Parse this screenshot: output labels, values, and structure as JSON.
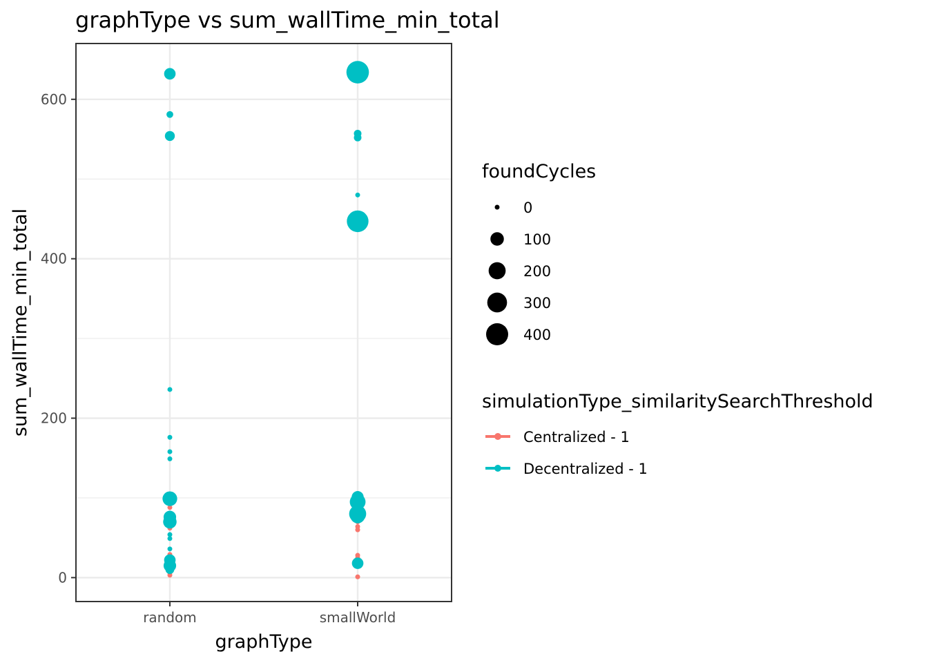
{
  "chart_data": {
    "type": "scatter",
    "title": "graphType  vs  sum_wallTime_min_total",
    "xlabel": "graphType",
    "ylabel": "sum_wallTime_min_total",
    "categories": [
      "random",
      "smallWorld"
    ],
    "ylim": [
      -30,
      670
    ],
    "yticks": [
      0,
      200,
      400,
      600
    ],
    "grid": true,
    "size_legend": {
      "title": "foundCycles",
      "breaks": [
        0,
        100,
        200,
        300,
        400
      ]
    },
    "color_legend": {
      "title": "simulationType_similaritySearchThreshold",
      "placement": "right"
    },
    "series": [
      {
        "name": "Centralized - 1",
        "color": "#F8766D",
        "points": [
          {
            "x": "random",
            "y": 88,
            "size": 0
          },
          {
            "x": "random",
            "y": 80,
            "size": 0
          },
          {
            "x": "random",
            "y": 72,
            "size": 0
          },
          {
            "x": "random",
            "y": 66,
            "size": 0
          },
          {
            "x": "random",
            "y": 62,
            "size": 0
          },
          {
            "x": "random",
            "y": 29,
            "size": 0
          },
          {
            "x": "random",
            "y": 25,
            "size": 0
          },
          {
            "x": "random",
            "y": 6,
            "size": 0
          },
          {
            "x": "random",
            "y": 3,
            "size": 0
          },
          {
            "x": "smallWorld",
            "y": 75,
            "size": 0
          },
          {
            "x": "smallWorld",
            "y": 70,
            "size": 0
          },
          {
            "x": "smallWorld",
            "y": 64,
            "size": 0
          },
          {
            "x": "smallWorld",
            "y": 60,
            "size": 0
          },
          {
            "x": "smallWorld",
            "y": 28,
            "size": 0
          },
          {
            "x": "smallWorld",
            "y": 25,
            "size": 0
          },
          {
            "x": "smallWorld",
            "y": 1,
            "size": 0
          }
        ]
      },
      {
        "name": "Decentralized - 1",
        "color": "#00BFC4",
        "points": [
          {
            "x": "random",
            "y": 632,
            "size": 60
          },
          {
            "x": "random",
            "y": 581,
            "size": 5
          },
          {
            "x": "random",
            "y": 554,
            "size": 35
          },
          {
            "x": "random",
            "y": 236,
            "size": 0
          },
          {
            "x": "random",
            "y": 176,
            "size": 0
          },
          {
            "x": "random",
            "y": 158,
            "size": 0
          },
          {
            "x": "random",
            "y": 149,
            "size": 0
          },
          {
            "x": "random",
            "y": 99,
            "size": 130
          },
          {
            "x": "random",
            "y": 76,
            "size": 80
          },
          {
            "x": "random",
            "y": 70,
            "size": 100
          },
          {
            "x": "random",
            "y": 54,
            "size": 0
          },
          {
            "x": "random",
            "y": 49,
            "size": 0
          },
          {
            "x": "random",
            "y": 36,
            "size": 0
          },
          {
            "x": "random",
            "y": 22,
            "size": 60
          },
          {
            "x": "random",
            "y": 15,
            "size": 80
          },
          {
            "x": "random",
            "y": 10,
            "size": 20
          },
          {
            "x": "smallWorld",
            "y": 634,
            "size": 420
          },
          {
            "x": "smallWorld",
            "y": 557,
            "size": 10
          },
          {
            "x": "smallWorld",
            "y": 552,
            "size": 10
          },
          {
            "x": "smallWorld",
            "y": 480,
            "size": 0
          },
          {
            "x": "smallWorld",
            "y": 447,
            "size": 380
          },
          {
            "x": "smallWorld",
            "y": 101,
            "size": 70
          },
          {
            "x": "smallWorld",
            "y": 95,
            "size": 160
          },
          {
            "x": "smallWorld",
            "y": 80,
            "size": 200
          },
          {
            "x": "smallWorld",
            "y": 77,
            "size": 120
          },
          {
            "x": "smallWorld",
            "y": 18,
            "size": 60
          }
        ]
      }
    ]
  }
}
